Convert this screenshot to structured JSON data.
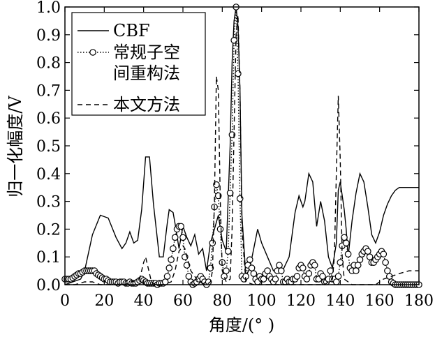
{
  "chart_data": {
    "type": "line",
    "xlabel": "角度/(°  )",
    "ylabel": "归一化幅度/V",
    "xlim": [
      0,
      180
    ],
    "ylim": [
      0,
      1.0
    ],
    "x_ticks": [
      0,
      20,
      40,
      60,
      80,
      100,
      120,
      140,
      160,
      180
    ],
    "y_ticks": [
      "0.0",
      "0.1",
      "0.2",
      "0.3",
      "0.4",
      "0.5",
      "0.6",
      "0.7",
      "0.8",
      "0.9",
      "1.0"
    ],
    "grid": false,
    "legend_position": "top-left",
    "legend": [
      {
        "label": "CBF",
        "style": "solid"
      },
      {
        "label": "常规子空",
        "label2": "间重构法",
        "style": "dotted-circle"
      },
      {
        "label": "本文方法",
        "style": "dashed"
      }
    ],
    "series": [
      {
        "name": "CBF",
        "style": "solid",
        "x": [
          0,
          4,
          8,
          10,
          14,
          18,
          22,
          26,
          29,
          31,
          33,
          35,
          37,
          39,
          41,
          43,
          45,
          48,
          50,
          52,
          53,
          55,
          56,
          58,
          60,
          62,
          64,
          66,
          68,
          70,
          72,
          74,
          76,
          78,
          80,
          82,
          84,
          85,
          86,
          87,
          88,
          89,
          90,
          92,
          94,
          96,
          98,
          100,
          103,
          106,
          110,
          114,
          117,
          119,
          120,
          121,
          122,
          124,
          126,
          128,
          130,
          132,
          134,
          136,
          138,
          139,
          140,
          142,
          143,
          144,
          146,
          148,
          150,
          152,
          154,
          156,
          158,
          160,
          162,
          164,
          166,
          168,
          170,
          172,
          175,
          178,
          180
        ],
        "y": [
          0.0,
          0.01,
          0.02,
          0.05,
          0.18,
          0.25,
          0.24,
          0.17,
          0.13,
          0.15,
          0.19,
          0.15,
          0.16,
          0.27,
          0.46,
          0.46,
          0.29,
          0.1,
          0.1,
          0.22,
          0.27,
          0.26,
          0.22,
          0.13,
          0.21,
          0.17,
          0.14,
          0.18,
          0.11,
          0.13,
          0.05,
          0.15,
          0.2,
          0.25,
          0.16,
          0.12,
          0.5,
          0.8,
          0.95,
          1.0,
          0.93,
          0.7,
          0.25,
          0.03,
          0.06,
          0.13,
          0.2,
          0.15,
          0.1,
          0.05,
          0.04,
          0.1,
          0.26,
          0.32,
          0.3,
          0.28,
          0.3,
          0.4,
          0.37,
          0.21,
          0.3,
          0.23,
          0.1,
          0.06,
          0.15,
          0.34,
          0.37,
          0.27,
          0.2,
          0.1,
          0.23,
          0.33,
          0.4,
          0.37,
          0.28,
          0.18,
          0.15,
          0.19,
          0.25,
          0.29,
          0.32,
          0.34,
          0.35,
          0.35,
          0.35,
          0.35,
          0.35
        ]
      },
      {
        "name": "常规子空间重构法",
        "style": "dotted-circle",
        "x": [
          0,
          1,
          2,
          3,
          4,
          5,
          6,
          7,
          8,
          9,
          10,
          11,
          12,
          13,
          14,
          15,
          16,
          17,
          18,
          19,
          20,
          21,
          22,
          23,
          24,
          25,
          26,
          27,
          28,
          29,
          30,
          31,
          32,
          33,
          34,
          35,
          36,
          37,
          38,
          39,
          40,
          41,
          42,
          43,
          44,
          45,
          46,
          47,
          48,
          49,
          50,
          51,
          52,
          53,
          54,
          55,
          56,
          57,
          58,
          59,
          60,
          61,
          62,
          63,
          64,
          65,
          66,
          67,
          68,
          69,
          70,
          71,
          72,
          73,
          74,
          75,
          76,
          77,
          78,
          79,
          80,
          81,
          82,
          83,
          84,
          85,
          86,
          87,
          88,
          89,
          90,
          91,
          92,
          93,
          94,
          95,
          96,
          97,
          98,
          99,
          100,
          101,
          102,
          103,
          104,
          105,
          106,
          107,
          108,
          109,
          110,
          111,
          112,
          113,
          114,
          115,
          116,
          117,
          118,
          119,
          120,
          121,
          122,
          123,
          124,
          125,
          126,
          127,
          128,
          129,
          130,
          131,
          132,
          133,
          134,
          135,
          136,
          137,
          138,
          139,
          140,
          141,
          142,
          143,
          144,
          145,
          146,
          147,
          148,
          149,
          150,
          151,
          152,
          153,
          154,
          155,
          156,
          157,
          158,
          159,
          160,
          161,
          162,
          163,
          164,
          165,
          166,
          167,
          168,
          169,
          170,
          171,
          172,
          173,
          174,
          175,
          176,
          177,
          178,
          179,
          180
        ],
        "y": [
          0.02,
          0.02,
          0.02,
          0.02,
          0.025,
          0.03,
          0.035,
          0.04,
          0.04,
          0.045,
          0.05,
          0.05,
          0.05,
          0.05,
          0.05,
          0.05,
          0.04,
          0.035,
          0.03,
          0.025,
          0.02,
          0.02,
          0.015,
          0.01,
          0.01,
          0.01,
          0.01,
          0.005,
          0.01,
          0.01,
          0.01,
          0.005,
          0.005,
          0.01,
          0.005,
          0.005,
          0.005,
          0.01,
          0.015,
          0.02,
          0.015,
          0.01,
          0.005,
          0.005,
          0.005,
          0.005,
          0.005,
          0.0,
          0.005,
          0.005,
          0.005,
          0.01,
          0.03,
          0.06,
          0.09,
          0.13,
          0.17,
          0.2,
          0.21,
          0.21,
          0.17,
          0.1,
          0.07,
          0.03,
          0.01,
          0.0,
          0.005,
          0.01,
          0.02,
          0.03,
          0.02,
          0.01,
          0.0,
          0.01,
          0.06,
          0.15,
          0.28,
          0.36,
          0.32,
          0.2,
          0.08,
          0.03,
          0.05,
          0.12,
          0.33,
          0.54,
          0.88,
          1.0,
          0.76,
          0.31,
          0.03,
          0.02,
          0.03,
          0.07,
          0.09,
          0.06,
          0.04,
          0.02,
          0.01,
          0.03,
          0.02,
          0.02,
          0.04,
          0.05,
          0.03,
          0.02,
          0.01,
          0.02,
          0.05,
          0.07,
          0.05,
          0.01,
          0.01,
          0.02,
          0.01,
          0.01,
          0.02,
          0.02,
          0.03,
          0.06,
          0.07,
          0.06,
          0.03,
          0.02,
          0.04,
          0.07,
          0.08,
          0.07,
          0.02,
          0.02,
          0.04,
          0.03,
          0.01,
          0.01,
          0.02,
          0.05,
          0.02,
          0.02,
          0.01,
          0.03,
          0.08,
          0.14,
          0.17,
          0.15,
          0.11,
          0.06,
          0.05,
          0.07,
          0.05,
          0.07,
          0.09,
          0.11,
          0.12,
          0.13,
          0.12,
          0.1,
          0.08,
          0.08,
          0.09,
          0.1,
          0.11,
          0.12,
          0.11,
          0.08,
          0.05,
          0.03,
          0.01,
          0.005,
          0.0,
          0.0,
          0.0,
          0.0,
          0.0,
          0.0,
          0.0,
          0.0,
          0.0,
          0.0,
          0.0,
          0.0,
          0.0
        ]
      },
      {
        "name": "本文方法",
        "style": "dashed",
        "x": [
          0,
          5,
          10,
          14,
          18,
          22,
          30,
          38,
          40,
          41,
          42,
          44,
          46,
          50,
          54,
          56,
          58,
          60,
          61,
          62,
          64,
          68,
          72,
          74,
          75,
          76,
          77,
          78,
          79,
          80,
          82,
          84,
          85,
          86,
          87,
          88,
          89,
          90,
          92,
          96,
          100,
          108,
          116,
          124,
          132,
          136,
          137,
          138,
          139,
          140,
          141,
          142,
          146,
          150,
          154,
          158,
          162,
          166,
          170,
          175,
          180
        ],
        "y": [
          0.0,
          0.0,
          0.01,
          0.01,
          0.0,
          0.0,
          0.0,
          0.02,
          0.08,
          0.1,
          0.07,
          0.01,
          0.0,
          0.0,
          0.01,
          0.05,
          0.12,
          0.14,
          0.13,
          0.1,
          0.05,
          0.01,
          0.0,
          0.01,
          0.05,
          0.3,
          0.75,
          0.7,
          0.3,
          0.05,
          0.01,
          0.02,
          0.2,
          0.55,
          0.9,
          0.97,
          0.7,
          0.2,
          0.01,
          0.0,
          0.0,
          0.0,
          0.0,
          0.0,
          0.0,
          0.02,
          0.1,
          0.4,
          0.68,
          0.45,
          0.1,
          0.02,
          0.0,
          0.0,
          0.0,
          0.0,
          0.02,
          0.03,
          0.04,
          0.05,
          0.05
        ]
      }
    ]
  }
}
